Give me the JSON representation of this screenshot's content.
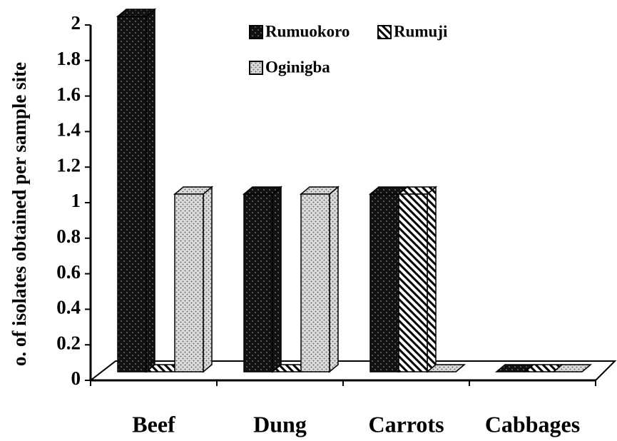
{
  "chart_data": {
    "type": "bar3d",
    "y_label": "o. of isolates obtained per sample site",
    "categories": [
      "Beef",
      "Dung",
      "Carrots",
      "Cabbages"
    ],
    "series": [
      {
        "name": "Rumuokoro",
        "color": "#111111",
        "values": [
          2,
          1,
          1,
          0
        ]
      },
      {
        "name": "Rumuji",
        "color": "#ffffff",
        "values": [
          0,
          0,
          1,
          0
        ]
      },
      {
        "name": "Oginigba",
        "color": "#d9d9d9",
        "values": [
          1,
          1,
          0,
          0
        ]
      }
    ],
    "ylim": [
      0,
      2
    ],
    "yticks": [
      0,
      0.2,
      0.4,
      0.6,
      0.8,
      1,
      1.2,
      1.4,
      1.6,
      1.8,
      2
    ]
  }
}
